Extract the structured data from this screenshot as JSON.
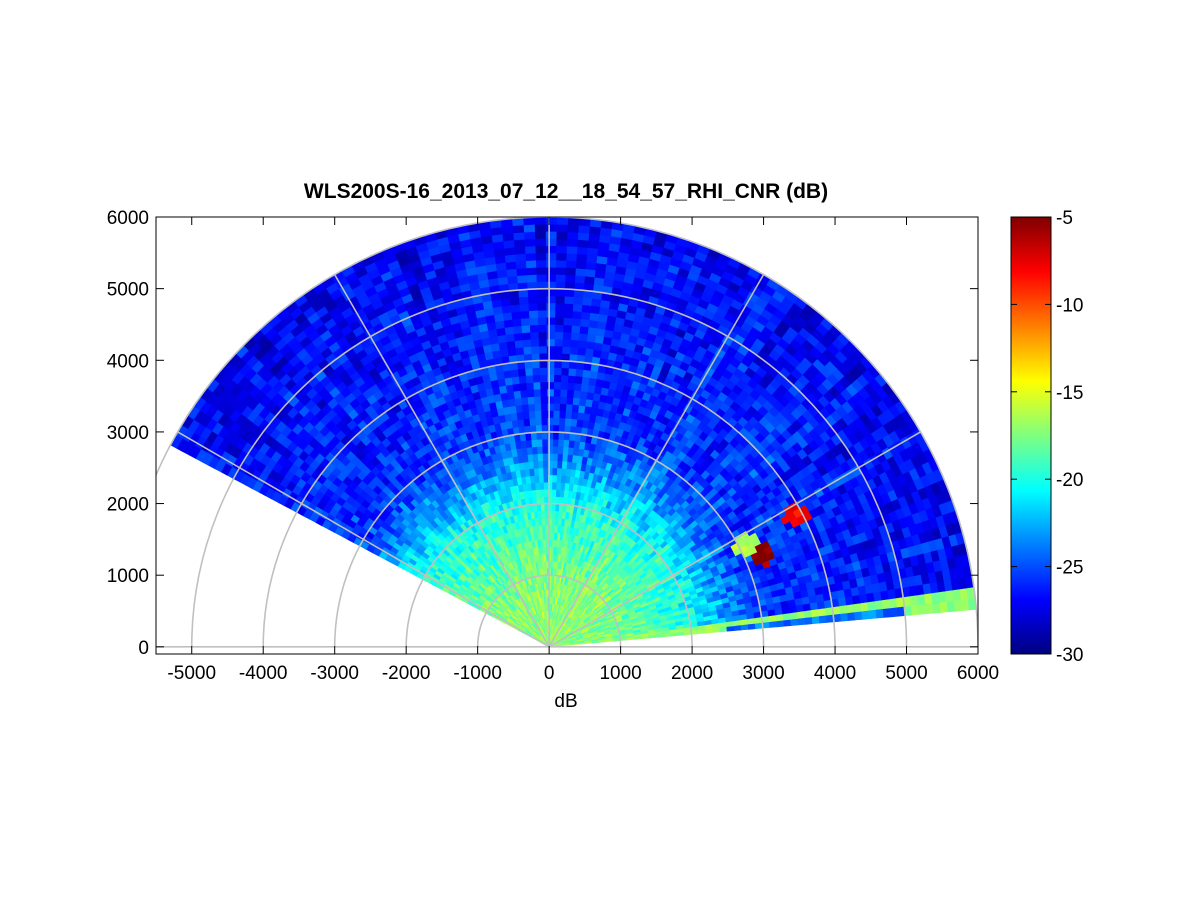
{
  "chart_data": {
    "type": "heatmap",
    "subtype": "polar-rhi-scan",
    "title": "WLS200S-16_2013_07_12__18_54_57_RHI_CNR (dB)",
    "xlabel": "dB",
    "ylabel": "",
    "xlim": [
      -5500,
      6000
    ],
    "ylim": [
      -100,
      6000
    ],
    "x_ticks": [
      "-5000",
      "-4000",
      "-3000",
      "-2000",
      "-1000",
      "0",
      "1000",
      "2000",
      "3000",
      "4000",
      "5000",
      "6000"
    ],
    "y_ticks": [
      "0",
      "1000",
      "2000",
      "3000",
      "4000",
      "5000",
      "6000"
    ],
    "polar_grid": {
      "ring_ranges": [
        1000,
        2000,
        3000,
        4000,
        5000,
        6000
      ],
      "spoke_angles_deg": [
        0,
        30,
        60,
        90,
        120,
        150,
        180
      ]
    },
    "scan": {
      "elevation_start_deg": 5,
      "elevation_end_deg": 152,
      "max_range": 6000,
      "range_gate": 100,
      "angle_step_deg": 1.5
    },
    "colorbar": {
      "colormap": "jet",
      "min": -30,
      "max": -5,
      "ticks": [
        "-5",
        "-10",
        "-15",
        "-20",
        "-25",
        "-30"
      ]
    },
    "cnr_profile": [
      {
        "range": 0,
        "cnr": -17
      },
      {
        "range": 1000,
        "cnr": -17.5
      },
      {
        "range": 2000,
        "cnr": -20
      },
      {
        "range": 2500,
        "cnr": -23
      },
      {
        "range": 3000,
        "cnr": -25.5
      },
      {
        "range": 6000,
        "cnr": -27
      }
    ],
    "hotspots": [
      {
        "x": 3000,
        "y": 1300,
        "cnr": -5.5
      },
      {
        "x": 3450,
        "y": 1850,
        "cnr": -8
      },
      {
        "x": 2750,
        "y": 1450,
        "cnr": -16
      }
    ],
    "low_elevation_band": {
      "elevation_deg": [
        5,
        8
      ],
      "cnr": -17
    }
  }
}
